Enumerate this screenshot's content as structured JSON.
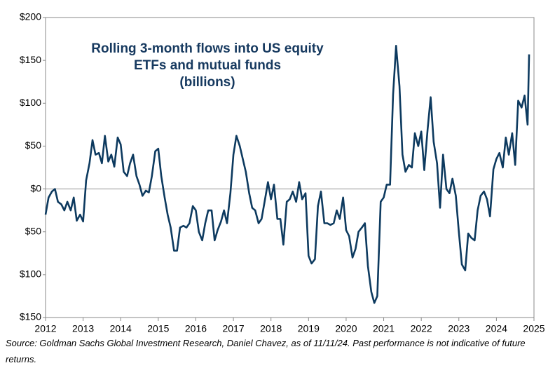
{
  "chart_data": {
    "type": "line",
    "title": [
      "Rolling 3-month flows into US equity",
      "ETFs and mutual funds",
      "(billions)"
    ],
    "source": "Source: Goldman Sachs Global Investment Research, Daniel Chavez,  as of 11/11/24. Past performance is not indicative of future returns.",
    "xlim": [
      2012,
      2025
    ],
    "xticks": [
      2012,
      2013,
      2014,
      2015,
      2016,
      2017,
      2018,
      2019,
      2020,
      2021,
      2022,
      2023,
      2024,
      2025
    ],
    "ylim": [
      -150,
      200
    ],
    "yticks": [
      {
        "value": 200,
        "label": "$200"
      },
      {
        "value": 150,
        "label": "$150"
      },
      {
        "value": 100,
        "label": "$100"
      },
      {
        "value": 50,
        "label": "$50"
      },
      {
        "value": 0,
        "label": "$0"
      },
      {
        "value": -50,
        "label": "$50"
      },
      {
        "value": -100,
        "label": "$100"
      },
      {
        "value": -150,
        "label": "$150"
      }
    ],
    "zero_line": true,
    "series": [
      {
        "color": "#0d3a5f",
        "x": [
          2012.0,
          2012.08,
          2012.17,
          2012.25,
          2012.33,
          2012.42,
          2012.5,
          2012.58,
          2012.67,
          2012.75,
          2012.83,
          2012.92,
          2013.0,
          2013.08,
          2013.17,
          2013.25,
          2013.33,
          2013.42,
          2013.5,
          2013.58,
          2013.67,
          2013.75,
          2013.83,
          2013.92,
          2014.0,
          2014.08,
          2014.17,
          2014.25,
          2014.33,
          2014.42,
          2014.5,
          2014.58,
          2014.67,
          2014.75,
          2014.83,
          2014.92,
          2015.0,
          2015.08,
          2015.17,
          2015.25,
          2015.33,
          2015.42,
          2015.5,
          2015.58,
          2015.67,
          2015.75,
          2015.83,
          2015.92,
          2016.0,
          2016.08,
          2016.17,
          2016.25,
          2016.33,
          2016.42,
          2016.5,
          2016.58,
          2016.67,
          2016.75,
          2016.83,
          2016.92,
          2017.0,
          2017.08,
          2017.17,
          2017.25,
          2017.33,
          2017.42,
          2017.5,
          2017.58,
          2017.67,
          2017.75,
          2017.83,
          2017.92,
          2018.0,
          2018.08,
          2018.17,
          2018.25,
          2018.33,
          2018.42,
          2018.5,
          2018.58,
          2018.67,
          2018.75,
          2018.83,
          2018.92,
          2019.0,
          2019.08,
          2019.17,
          2019.25,
          2019.33,
          2019.42,
          2019.5,
          2019.58,
          2019.67,
          2019.75,
          2019.83,
          2019.92,
          2020.0,
          2020.08,
          2020.17,
          2020.25,
          2020.33,
          2020.42,
          2020.5,
          2020.58,
          2020.67,
          2020.75,
          2020.83,
          2020.92,
          2021.0,
          2021.08,
          2021.17,
          2021.25,
          2021.33,
          2021.42,
          2021.5,
          2021.58,
          2021.67,
          2021.75,
          2021.83,
          2021.92,
          2022.0,
          2022.08,
          2022.17,
          2022.25,
          2022.33,
          2022.42,
          2022.5,
          2022.58,
          2022.67,
          2022.75,
          2022.83,
          2022.92,
          2023.0,
          2023.08,
          2023.17,
          2023.25,
          2023.33,
          2023.42,
          2023.5,
          2023.58,
          2023.67,
          2023.75,
          2023.83,
          2023.92,
          2024.0,
          2024.08,
          2024.17,
          2024.25,
          2024.33,
          2024.42,
          2024.5,
          2024.58,
          2024.67,
          2024.75,
          2024.83,
          2024.87
        ],
        "values": [
          -30,
          -10,
          -3,
          0,
          -15,
          -18,
          -25,
          -15,
          -25,
          -10,
          -37,
          -30,
          -38,
          10,
          30,
          57,
          40,
          42,
          30,
          62,
          32,
          40,
          26,
          60,
          52,
          20,
          15,
          30,
          40,
          15,
          5,
          -8,
          -2,
          -4,
          15,
          44,
          47,
          15,
          -10,
          -30,
          -45,
          -72,
          -72,
          -45,
          -43,
          -45,
          -40,
          -20,
          -25,
          -50,
          -60,
          -40,
          -25,
          -25,
          -60,
          -48,
          -38,
          -25,
          -40,
          -5,
          40,
          62,
          50,
          35,
          20,
          -5,
          -22,
          -25,
          -40,
          -35,
          -15,
          8,
          -12,
          5,
          -35,
          -35,
          -65,
          -15,
          -12,
          -3,
          -15,
          8,
          -12,
          -5,
          -78,
          -87,
          -82,
          -20,
          -3,
          -40,
          -40,
          -42,
          -40,
          -25,
          -35,
          -10,
          -48,
          -55,
          -80,
          -70,
          -50,
          -45,
          -40,
          -90,
          -120,
          -133,
          -125,
          -15,
          -10,
          5,
          5,
          110,
          167,
          120,
          40,
          20,
          28,
          25,
          65,
          50,
          67,
          22,
          70,
          107,
          55,
          30,
          -22,
          40,
          0,
          -5,
          12,
          -8,
          -50,
          -88,
          -95,
          -52,
          -57,
          -60,
          -25,
          -8,
          -3,
          -12,
          -32,
          23,
          35,
          42,
          25,
          60,
          40,
          65,
          28,
          103,
          95,
          109,
          75,
          157
        ]
      }
    ]
  }
}
